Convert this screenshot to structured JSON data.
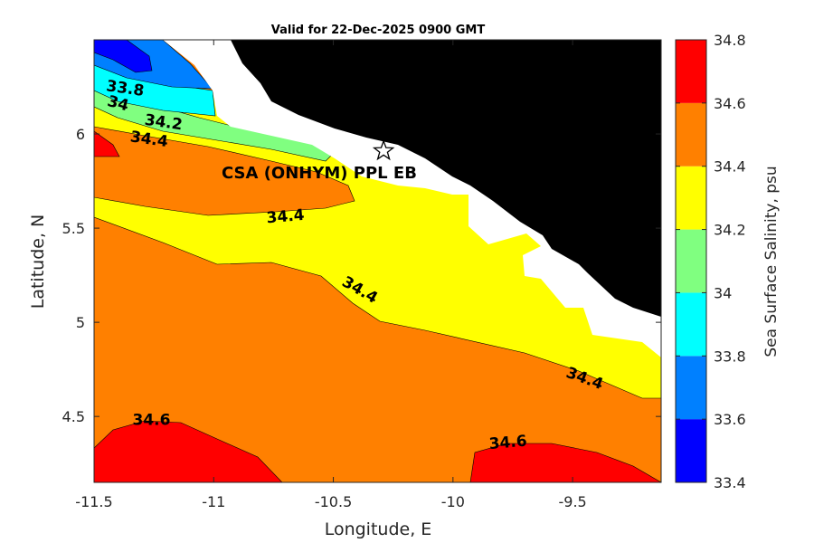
{
  "chart_data": {
    "type": "heatmap",
    "title": "Valid for 22-Dec-2025 0900 GMT",
    "xlabel": "Longitude, E",
    "ylabel": "Latitude, N",
    "xlim": [
      -11.5,
      -9.13
    ],
    "ylim": [
      4.15,
      6.5
    ],
    "x_ticks": [
      -11.5,
      -11,
      -10.5,
      -10,
      -9.5
    ],
    "x_tick_labels": [
      "-11.5",
      "-11",
      "-10.5",
      "-10",
      "-9.5"
    ],
    "y_ticks": [
      4.5,
      5,
      5.5,
      6
    ],
    "y_tick_labels": [
      "4.5",
      "5",
      "5.5",
      "6"
    ],
    "colorbar": {
      "label": "Sea Surface Salinity, psu",
      "levels": [
        33.4,
        33.6,
        33.8,
        34,
        34.2,
        34.4,
        34.6,
        34.8
      ],
      "tick_labels": [
        "33.4",
        "33.6",
        "33.8",
        "34",
        "34.2",
        "34.4",
        "34.6",
        "34.8"
      ],
      "colors": [
        "#0000ff",
        "#0080ff",
        "#00ffff",
        "#80ff80",
        "#ffff00",
        "#ff8000",
        "#ff0000"
      ]
    },
    "colors": {
      "land": "#000000",
      "no_data": "#ffffff"
    },
    "contour_labels": [
      {
        "text": "33.8",
        "lon": -11.37,
        "lat": 6.24
      },
      {
        "text": "34",
        "lon": -11.4,
        "lat": 6.16
      },
      {
        "text": "34.2",
        "lon": -11.21,
        "lat": 6.06
      },
      {
        "text": "34.4",
        "lon": -11.27,
        "lat": 5.97
      },
      {
        "text": "34.4",
        "lon": -10.7,
        "lat": 5.56
      },
      {
        "text": "34.4",
        "lon": -10.39,
        "lat": 5.17
      },
      {
        "text": "34.4",
        "lon": -9.45,
        "lat": 4.7
      },
      {
        "text": "34.6",
        "lon": -11.26,
        "lat": 4.48
      },
      {
        "text": "34.6",
        "lon": -9.77,
        "lat": 4.36
      }
    ],
    "station": {
      "label": "CSA (ONHYM) PPL EB",
      "lon": -10.29,
      "lat": 5.91,
      "marker": "star"
    }
  }
}
